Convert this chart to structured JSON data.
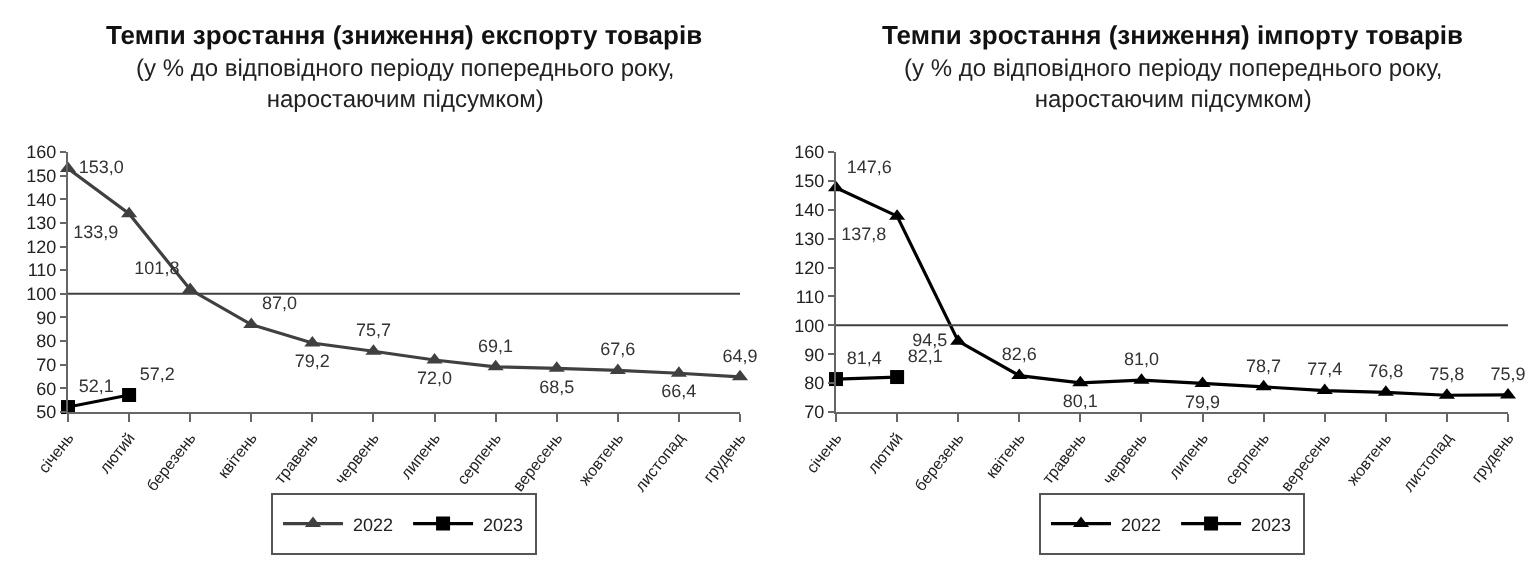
{
  "chart_data": [
    {
      "type": "line",
      "title": "Темпи зростання (зниження) експорту товарів",
      "subtitle": "(у % до відповідного періоду попереднього року, наростаючим підсумком)",
      "categories": [
        "січень",
        "лютий",
        "березень",
        "квітень",
        "травень",
        "червень",
        "липень",
        "серпень",
        "вересень",
        "жовтень",
        "листопад",
        "грудень"
      ],
      "series": [
        {
          "name": "2022",
          "color": "#404040",
          "marker": "triangle",
          "values": [
            153.0,
            133.9,
            101.8,
            87.0,
            79.2,
            75.7,
            72.0,
            69.1,
            68.5,
            67.6,
            66.4,
            64.9
          ],
          "value_labels": [
            "153,0",
            "133,9",
            "101,8",
            "87,0",
            "79,2",
            "75,7",
            "72,0",
            "69,1",
            "68,5",
            "67,6",
            "66,4",
            "64,9"
          ]
        },
        {
          "name": "2023",
          "color": "#000000",
          "marker": "square",
          "values": [
            52.1,
            57.2,
            null,
            null,
            null,
            null,
            null,
            null,
            null,
            null,
            null,
            null
          ],
          "value_labels": [
            "52,1",
            "57,2",
            null,
            null,
            null,
            null,
            null,
            null,
            null,
            null,
            null,
            null
          ]
        }
      ],
      "ylim": [
        50,
        160
      ],
      "yticks": [
        50,
        60,
        70,
        80,
        90,
        100,
        110,
        120,
        130,
        140,
        150,
        160
      ],
      "ref_lines": [
        {
          "axis": "y",
          "value": 100,
          "color": "#404040"
        }
      ],
      "grid": false,
      "legend": "bottom"
    },
    {
      "type": "line",
      "title": "Темпи зростання (зниження) імпорту товарів",
      "subtitle": "(у % до відповідного періоду попереднього року, наростаючим підсумком)",
      "categories": [
        "січень",
        "лютий",
        "березень",
        "квітень",
        "травень",
        "червень",
        "липень",
        "серпень",
        "вересень",
        "жовтень",
        "листопад",
        "грудень"
      ],
      "series": [
        {
          "name": "2022",
          "color": "#000000",
          "marker": "triangle",
          "values": [
            147.6,
            137.8,
            94.5,
            82.6,
            80.1,
            81.0,
            79.9,
            78.7,
            77.4,
            76.8,
            75.8,
            75.9
          ],
          "value_labels": [
            "147,6",
            "137,8",
            "94,5",
            "82,6",
            "80,1",
            "81,0",
            "79,9",
            "78,7",
            "77,4",
            "76,8",
            "75,8",
            "75,9"
          ]
        },
        {
          "name": "2023",
          "color": "#000000",
          "marker": "square",
          "values": [
            81.4,
            82.1,
            null,
            null,
            null,
            null,
            null,
            null,
            null,
            null,
            null,
            null
          ],
          "value_labels": [
            "81,4",
            "82,1",
            null,
            null,
            null,
            null,
            null,
            null,
            null,
            null,
            null,
            null
          ]
        }
      ],
      "ylim": [
        70,
        160
      ],
      "yticks": [
        70,
        80,
        90,
        100,
        110,
        120,
        130,
        140,
        150,
        160
      ],
      "ref_lines": [
        {
          "axis": "y",
          "value": 100,
          "color": "#404040"
        }
      ],
      "grid": false,
      "legend": "bottom"
    }
  ]
}
